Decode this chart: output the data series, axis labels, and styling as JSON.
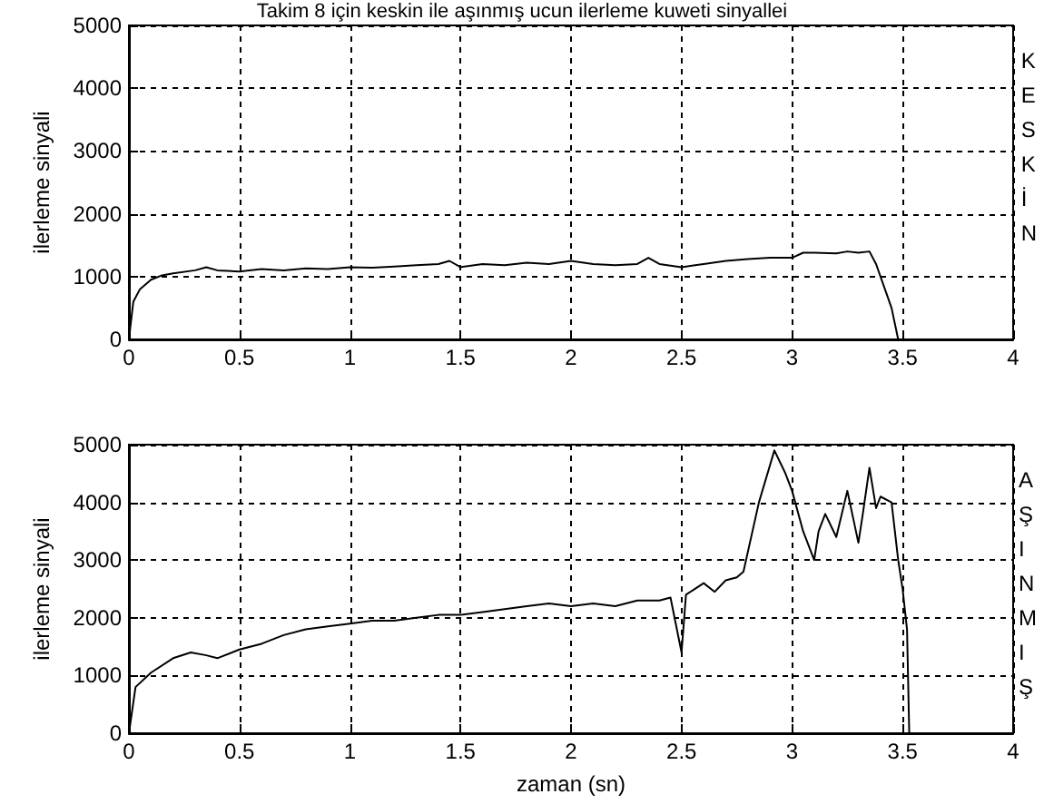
{
  "chart_data": [
    {
      "type": "line",
      "title": "Takim 8 için keskin ile aşınmış ucun ilerleme kuweti sinyallei",
      "ylabel": "ilerleme sinyali",
      "annotations": [
        "KESKİN"
      ],
      "color": "#000000",
      "x": [
        0,
        0.02,
        0.05,
        0.1,
        0.15,
        0.2,
        0.3,
        0.35,
        0.4,
        0.5,
        0.6,
        0.7,
        0.8,
        0.9,
        1.0,
        1.1,
        1.2,
        1.3,
        1.4,
        1.45,
        1.5,
        1.6,
        1.7,
        1.8,
        1.9,
        2.0,
        2.1,
        2.2,
        2.3,
        2.35,
        2.4,
        2.5,
        2.6,
        2.7,
        2.8,
        2.9,
        3.0,
        3.05,
        3.1,
        3.2,
        3.25,
        3.3,
        3.35,
        3.38,
        3.42,
        3.45,
        3.48
      ],
      "values": [
        0,
        600,
        800,
        950,
        1020,
        1050,
        1100,
        1150,
        1100,
        1080,
        1120,
        1100,
        1130,
        1120,
        1150,
        1140,
        1160,
        1180,
        1200,
        1250,
        1150,
        1200,
        1180,
        1220,
        1200,
        1250,
        1200,
        1180,
        1200,
        1300,
        1200,
        1150,
        1200,
        1250,
        1280,
        1300,
        1300,
        1380,
        1380,
        1370,
        1400,
        1380,
        1400,
        1200,
        800,
        500,
        0
      ],
      "xlim": [
        0,
        4
      ],
      "xticks": [
        0,
        0.5,
        1,
        1.5,
        2,
        2.5,
        3,
        3.5,
        4
      ],
      "ylim": [
        0,
        5000
      ],
      "yticks": [
        0,
        1000,
        2000,
        3000,
        4000,
        5000
      ],
      "grid": true
    },
    {
      "type": "line",
      "xlabel": "zaman (sn)",
      "ylabel": "ilerleme sinyali",
      "annotations": [
        "AŞINMIŞ"
      ],
      "color": "#000000",
      "x": [
        0,
        0.03,
        0.1,
        0.2,
        0.28,
        0.35,
        0.4,
        0.5,
        0.6,
        0.7,
        0.8,
        0.9,
        1.0,
        1.1,
        1.2,
        1.3,
        1.4,
        1.5,
        1.6,
        1.7,
        1.8,
        1.9,
        2.0,
        2.1,
        2.2,
        2.3,
        2.4,
        2.45,
        2.5,
        2.52,
        2.6,
        2.65,
        2.7,
        2.75,
        2.78,
        2.85,
        2.92,
        2.97,
        3.0,
        3.05,
        3.1,
        3.12,
        3.15,
        3.2,
        3.25,
        3.3,
        3.32,
        3.35,
        3.38,
        3.4,
        3.45,
        3.48,
        3.5,
        3.52,
        3.53,
        3.6,
        4.0
      ],
      "values": [
        0,
        800,
        1050,
        1300,
        1400,
        1350,
        1300,
        1450,
        1550,
        1700,
        1800,
        1850,
        1900,
        1950,
        1950,
        2000,
        2050,
        2050,
        2100,
        2150,
        2200,
        2250,
        2200,
        2250,
        2200,
        2300,
        2300,
        2350,
        1400,
        2400,
        2600,
        2450,
        2650,
        2700,
        2800,
        4000,
        4900,
        4500,
        4200,
        3500,
        3000,
        3500,
        3800,
        3400,
        4200,
        3300,
        3800,
        4600,
        3900,
        4100,
        4000,
        3000,
        2500,
        1800,
        0,
        0,
        0
      ],
      "xlim": [
        0,
        4
      ],
      "xticks": [
        0,
        0.5,
        1,
        1.5,
        2,
        2.5,
        3,
        3.5,
        4
      ],
      "ylim": [
        0,
        5000
      ],
      "yticks": [
        0,
        1000,
        2000,
        3000,
        4000,
        5000
      ],
      "grid": true
    }
  ]
}
